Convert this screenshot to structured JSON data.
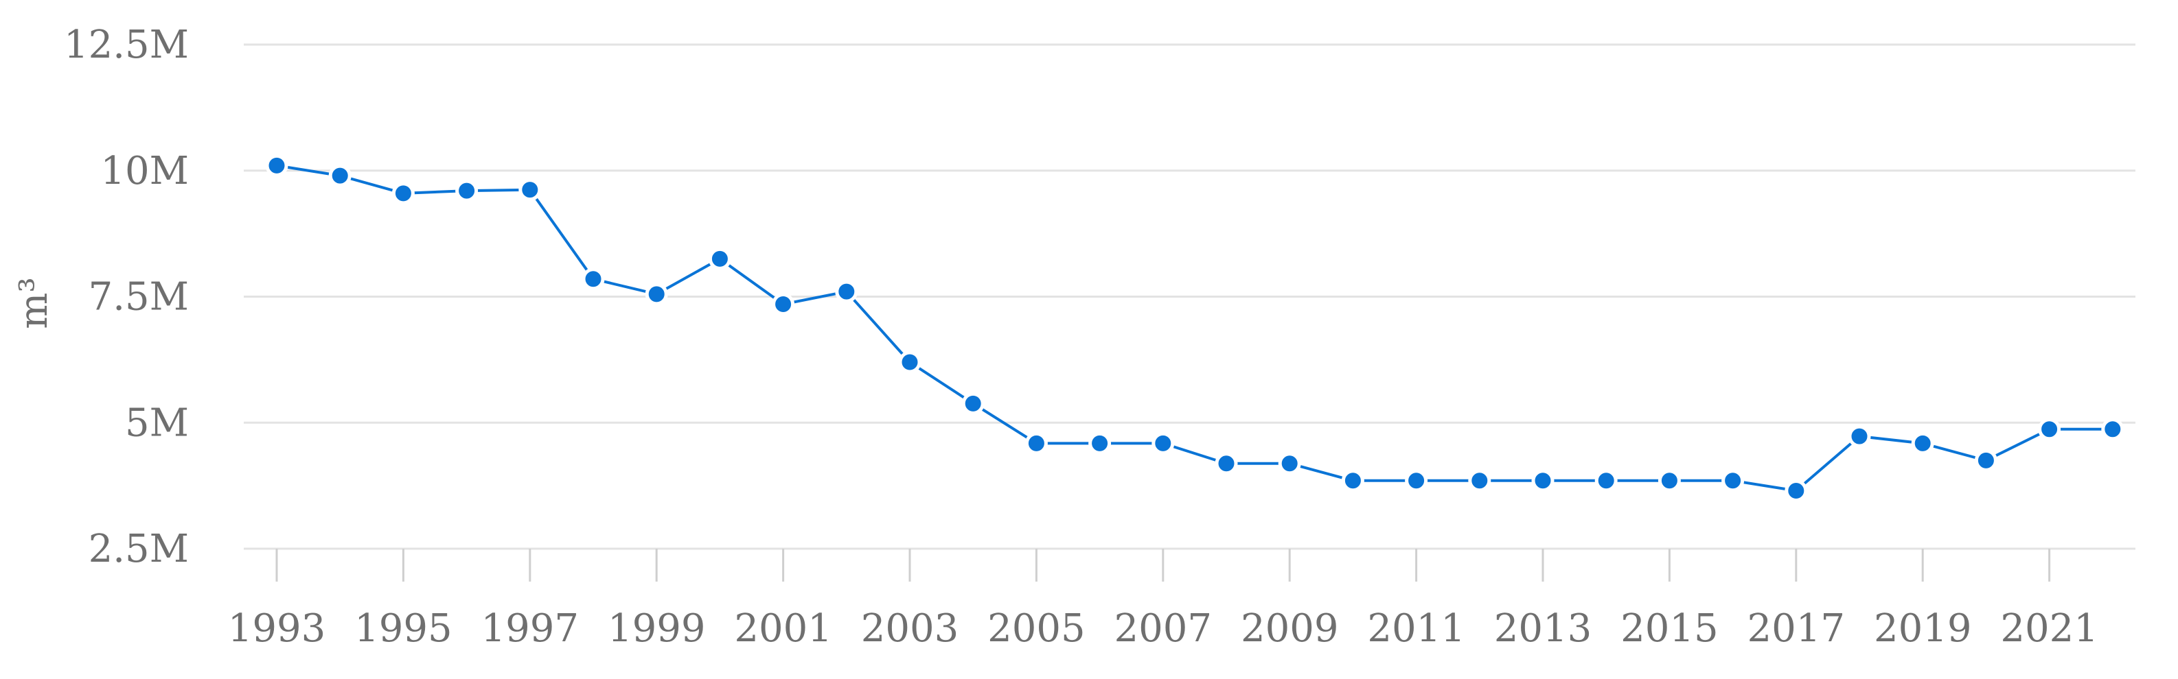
{
  "chart_data": {
    "type": "line",
    "title": "",
    "xlabel": "",
    "ylabel": "m³",
    "ylim": [
      2500000,
      12500000
    ],
    "yticks": [
      {
        "value": 2500000,
        "label": "2.5M"
      },
      {
        "value": 5000000,
        "label": "5M"
      },
      {
        "value": 7500000,
        "label": "7.5M"
      },
      {
        "value": 10000000,
        "label": "10M"
      },
      {
        "value": 12500000,
        "label": "12.5M"
      }
    ],
    "xticks": [
      1993,
      1995,
      1997,
      1999,
      2001,
      2003,
      2005,
      2007,
      2009,
      2011,
      2013,
      2015,
      2017,
      2019,
      2021
    ],
    "grid": "horizontal",
    "legend": "none",
    "color": "#0a74d6",
    "x": [
      1993,
      1994,
      1995,
      1996,
      1997,
      1998,
      1999,
      2000,
      2001,
      2002,
      2003,
      2004,
      2005,
      2006,
      2007,
      2008,
      2009,
      2010,
      2011,
      2012,
      2013,
      2014,
      2015,
      2016,
      2017,
      2018,
      2019,
      2020,
      2021,
      2022
    ],
    "values": [
      10100000,
      9900000,
      9550000,
      9600000,
      9620000,
      7850000,
      7550000,
      8250000,
      7350000,
      7600000,
      6200000,
      5380000,
      4590000,
      4590000,
      4590000,
      4190000,
      4190000,
      3850000,
      3850000,
      3850000,
      3850000,
      3850000,
      3850000,
      3850000,
      3650000,
      4730000,
      4590000,
      4250000,
      4870000,
      4870000
    ]
  }
}
